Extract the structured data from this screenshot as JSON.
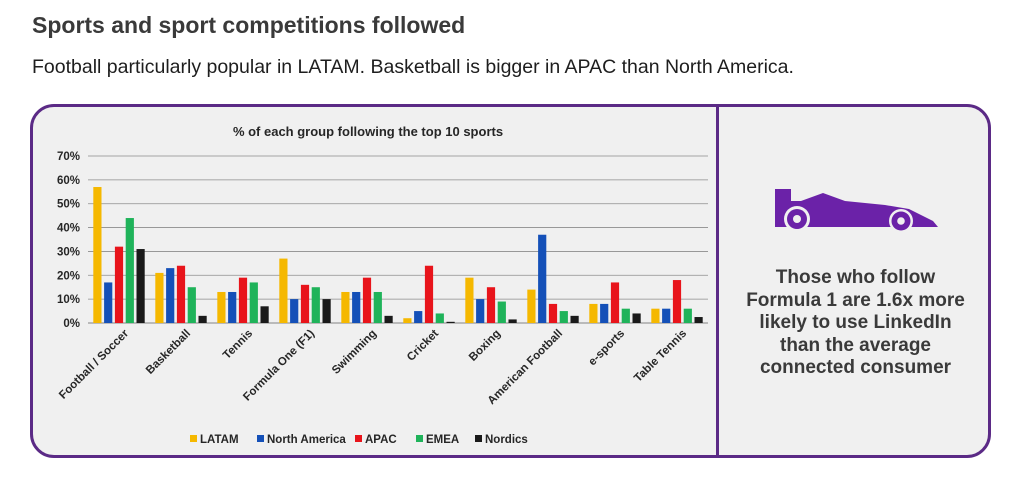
{
  "header": {
    "title": "Sports and sport competitions followed",
    "subtitle": "Football particularly popular in LATAM. Basketball is bigger in APAC than North America."
  },
  "callout": {
    "icon": "race-car-icon",
    "icon_color": "#6b22a8",
    "text": "Those who follow Formula 1 are 1.6x more likely to use LinkedIn than the average connected consumer"
  },
  "chart_data": {
    "type": "bar",
    "title": "% of each group following the top 10 sports",
    "xlabel": "",
    "ylabel": "",
    "ylim": [
      0,
      70
    ],
    "yticks": [
      "0%",
      "10%",
      "20%",
      "30%",
      "40%",
      "50%",
      "60%",
      "70%"
    ],
    "grid": true,
    "legend_position": "bottom",
    "categories": [
      "Football / Soccer",
      "Basketball",
      "Tennis",
      "Formula One (F1)",
      "Swimming",
      "Cricket",
      "Boxing",
      "American Football",
      "e-sports",
      "Table Tennis"
    ],
    "series": [
      {
        "name": "LATAM",
        "color": "#f5b800",
        "values": [
          57,
          21,
          13,
          27,
          13,
          2,
          19,
          14,
          8,
          6
        ]
      },
      {
        "name": "North America",
        "color": "#1450b8",
        "values": [
          17,
          23,
          13,
          10,
          13,
          5,
          10,
          37,
          8,
          6
        ]
      },
      {
        "name": "APAC",
        "color": "#e8141b",
        "values": [
          32,
          24,
          19,
          16,
          19,
          24,
          15,
          8,
          17,
          18
        ]
      },
      {
        "name": "EMEA",
        "color": "#1fb35a",
        "values": [
          44,
          15,
          17,
          15,
          13,
          4,
          9,
          5,
          6,
          6
        ]
      },
      {
        "name": "Nordics",
        "color": "#1a1a1a",
        "values": [
          31,
          3,
          7,
          10,
          3,
          0.5,
          1.5,
          3,
          4,
          2.5
        ]
      }
    ]
  }
}
